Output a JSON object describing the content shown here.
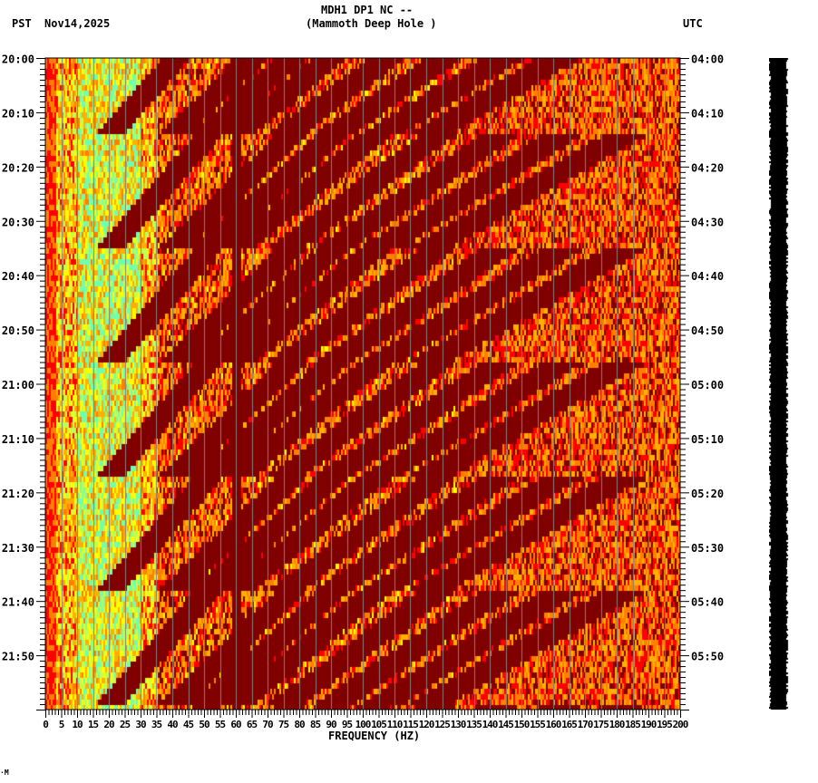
{
  "header": {
    "station": "MDH1 DP1 NC --",
    "location": "(Mammoth Deep Hole )",
    "left_tz": "PST",
    "date": "Nov14,2025",
    "right_tz": "UTC"
  },
  "footer_mark": "·M",
  "colors": {
    "palette": [
      "#800000",
      "#ff0000",
      "#ff8000",
      "#ffb000",
      "#ffff00",
      "#c0ff50",
      "#70ffb0"
    ],
    "grid": "#808080",
    "bar": "#000000"
  },
  "chart_data": {
    "type": "heatmap",
    "title": "MDH1 DP1 NC -- (Mammoth Deep Hole )",
    "subtitle": "PST Nov14,2025 / UTC",
    "xlabel": "FREQUENCY (HZ)",
    "ylabel": "",
    "xlim": [
      0,
      200
    ],
    "x_ticks": [
      0,
      5,
      10,
      15,
      20,
      25,
      30,
      35,
      40,
      45,
      50,
      55,
      60,
      65,
      70,
      75,
      80,
      85,
      90,
      95,
      100,
      105,
      110,
      115,
      120,
      125,
      130,
      135,
      140,
      145,
      150,
      155,
      160,
      165,
      170,
      175,
      180,
      185,
      190,
      195,
      200
    ],
    "y_left_labels": [
      "20:00",
      "20:10",
      "20:20",
      "20:30",
      "20:40",
      "20:50",
      "21:00",
      "21:10",
      "21:20",
      "21:30",
      "21:40",
      "21:50"
    ],
    "y_right_labels": [
      "04:00",
      "04:10",
      "04:20",
      "04:30",
      "04:40",
      "04:50",
      "05:00",
      "05:10",
      "05:20",
      "05:30",
      "05:40",
      "05:50"
    ],
    "time_range_minutes": 120,
    "minor_tick_minutes": 1,
    "grid": true,
    "features": {
      "persistent_line_hz": 60,
      "sweep_start_hz": [
        20,
        40,
        50,
        60,
        75,
        90,
        105,
        120
      ],
      "sweep_period_minutes": 21,
      "dominant_low_freq_band_hz": [
        10,
        30
      ],
      "note": "repeating curved high-amplitude sweeps (dark red) over noisy orange/yellow background; green/cyan lower energy near 10-30 Hz"
    }
  }
}
